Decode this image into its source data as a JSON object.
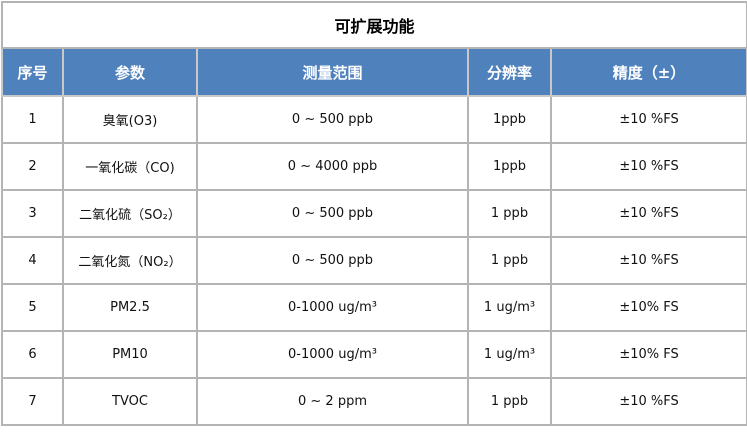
{
  "title": "可扩展功能",
  "columns": [
    "序号",
    "参数",
    "测量范围",
    "分辨率",
    "精度（±）"
  ],
  "header_color": "#4f81bd",
  "rows": [
    [
      "1",
      "臭氧(O3)",
      "0 ~ 500 ppb",
      "1ppb",
      "±10 %FS"
    ],
    [
      "2",
      "一氧化碳（CO)",
      "0 ~ 4000 ppb",
      "1ppb",
      "±10 %FS"
    ],
    [
      "3",
      "二氧化硫（SO₂）",
      "0 ~ 500 ppb",
      "1 ppb",
      "±10 %FS"
    ],
    [
      "4",
      "二氧化氮（NO₂）",
      "0 ~ 500 ppb",
      "1 ppb",
      "±10 %FS"
    ],
    [
      "5",
      "PM2.5",
      "0-1000 ug/m³",
      "1 ug/m³",
      "±10% FS"
    ],
    [
      "6",
      "PM10",
      "0-1000 ug/m³",
      "1 ug/m³",
      "±10% FS"
    ],
    [
      "7",
      "TVOC",
      "0 ~ 2 ppm",
      "1 ppb",
      "±10 %FS"
    ]
  ]
}
